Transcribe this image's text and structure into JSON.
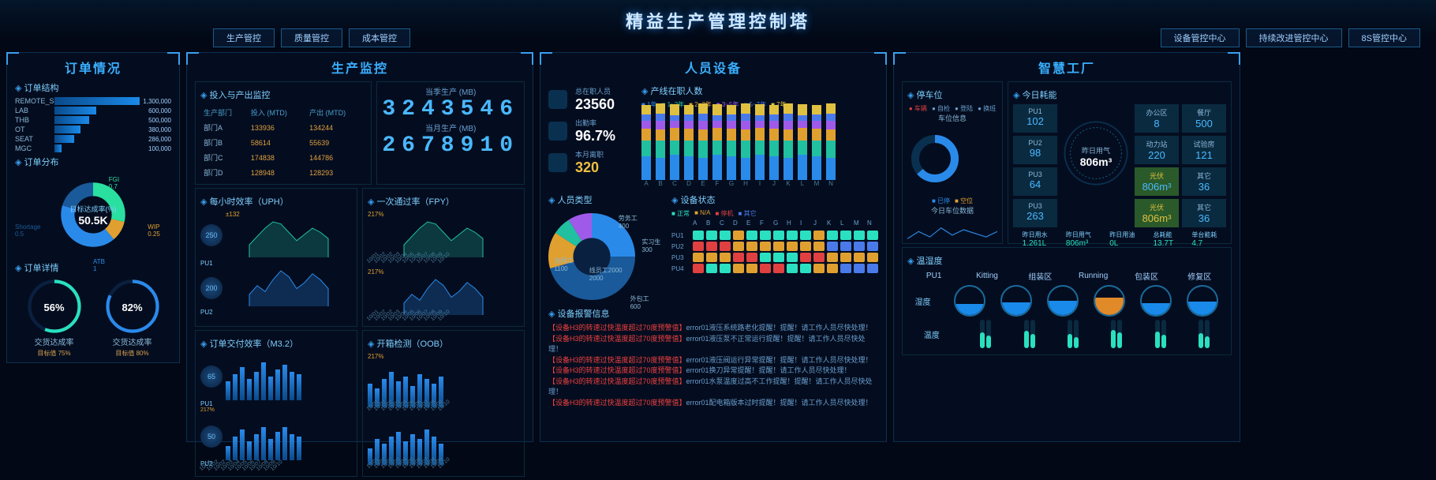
{
  "title": "精益生产管理控制塔",
  "nav_left": [
    "生产管控",
    "质量管控",
    "成本管控"
  ],
  "nav_right": [
    "设备管控中心",
    "持续改进管控中心",
    "8S管控中心"
  ],
  "orders": {
    "title": "订单情况",
    "sec1": "订单结构",
    "bars": [
      {
        "l": "REMOTE_SITE",
        "v": 1300000,
        "pct": 100
      },
      {
        "l": "LAB",
        "v": 600000,
        "pct": 46
      },
      {
        "l": "THB",
        "v": 500000,
        "pct": 38
      },
      {
        "l": "OT",
        "v": 380000,
        "pct": 29
      },
      {
        "l": "SEAT",
        "v": 286000,
        "pct": 22
      },
      {
        "l": "MGC",
        "v": 100000,
        "pct": 8
      }
    ],
    "sec2": "订单分布",
    "donut": {
      "center_l": "目标达成率(%)",
      "center_v": "50.5K",
      "slices": [
        {
          "l": "FGI",
          "v": 0.7,
          "c": "#2ae0a0"
        },
        {
          "l": "WIP",
          "v": 0.25,
          "c": "#e0a030"
        },
        {
          "l": "ATB",
          "v": 1,
          "c": "#2a8aea"
        },
        {
          "l": "Shortage",
          "v": 0.5,
          "c": "#1a5a9a"
        }
      ]
    },
    "sec3": "订单详情",
    "gauges": [
      {
        "l": "交货达成率",
        "v": "56%",
        "pct": 56,
        "tgt": "目标值 75%",
        "c": "#2ae0c0"
      },
      {
        "l": "交货达成率",
        "v": "82%",
        "pct": 82,
        "tgt": "目标值 80%",
        "c": "#2a8aea"
      }
    ]
  },
  "prod": {
    "title": "生产监控",
    "sec1": "投入与产出监控",
    "tbl_head": [
      "生产部门",
      "投入 (MTD)",
      "产出 (MTD)"
    ],
    "tbl_rows": [
      [
        "部门A",
        "133936",
        "134244"
      ],
      [
        "部门B",
        "58614",
        "55639"
      ],
      [
        "部门C",
        "174838",
        "144786"
      ],
      [
        "部门D",
        "128948",
        "128293"
      ]
    ],
    "season_l": "当季生产 (MB)",
    "season_v": "3243546",
    "month_l": "当月生产 (MB)",
    "month_v": "2678910",
    "sec2": "每小时效率（UPH）",
    "sec3": "一次通过率（FPY）",
    "pu_labels": [
      "PU1",
      "PU2"
    ],
    "pu_vals": [
      "250",
      "200"
    ],
    "fpy_pcts": [
      "217%",
      "217%"
    ],
    "area1": [
      30,
      50,
      70,
      85,
      80,
      60,
      40,
      55,
      70,
      60,
      45
    ],
    "area2": [
      20,
      35,
      25,
      45,
      60,
      50,
      30,
      40,
      55,
      45,
      30
    ],
    "sec4": "订单交付效率（M3.2）",
    "sec5": "开箱检测（OOB）",
    "bars1": [
      40,
      55,
      70,
      45,
      60,
      80,
      50,
      65,
      75,
      60,
      55
    ],
    "bars2": [
      30,
      50,
      65,
      40,
      55,
      70,
      45,
      60,
      70,
      55,
      50
    ],
    "bars3": [
      50,
      40,
      60,
      75,
      55,
      65,
      45,
      70,
      60,
      50,
      65
    ],
    "bars4": [
      35,
      55,
      45,
      60,
      70,
      50,
      65,
      55,
      75,
      60,
      45
    ],
    "dates": [
      "10/01",
      "10/02",
      "10/02",
      "10/03",
      "10/04",
      "10/05",
      "10/06",
      "10/07",
      "10/08",
      "10/09",
      "10/10"
    ]
  },
  "people": {
    "title": "人员设备",
    "stats": [
      {
        "l": "总在职人员",
        "v": "23560",
        "c": "#ffffff"
      },
      {
        "l": "出勤率",
        "v": "96.7%",
        "c": "#ffffff"
      },
      {
        "l": "本月离职",
        "v": "320",
        "c": "#f0c040"
      }
    ],
    "sec_staff": "产线在职人数",
    "staff_legend": [
      "1年",
      "1~2年",
      "2~3年",
      "3~5年",
      "5~7年",
      "7年"
    ],
    "staff_colors": [
      "#2a8aea",
      "#20c0a0",
      "#e0a030",
      "#a05aea",
      "#4a7aea",
      "#e0c040"
    ],
    "staff_cats": [
      "A",
      "B",
      "C",
      "D",
      "E",
      "F",
      "G",
      "H",
      "I",
      "J",
      "K",
      "L",
      "M",
      "N"
    ],
    "staff_data": [
      [
        30,
        20,
        15,
        10,
        8,
        12
      ],
      [
        28,
        22,
        14,
        11,
        9,
        13
      ],
      [
        32,
        18,
        16,
        9,
        7,
        14
      ],
      [
        30,
        20,
        15,
        10,
        8,
        12
      ],
      [
        28,
        22,
        14,
        11,
        9,
        13
      ],
      [
        32,
        18,
        16,
        9,
        7,
        14
      ],
      [
        30,
        20,
        15,
        10,
        8,
        12
      ],
      [
        28,
        22,
        14,
        11,
        9,
        13
      ],
      [
        32,
        18,
        16,
        9,
        7,
        14
      ],
      [
        30,
        20,
        15,
        10,
        8,
        12
      ],
      [
        28,
        22,
        14,
        11,
        9,
        13
      ],
      [
        32,
        18,
        16,
        9,
        7,
        14
      ],
      [
        30,
        20,
        15,
        10,
        8,
        12
      ],
      [
        28,
        22,
        14,
        11,
        9,
        13
      ]
    ],
    "sec_type": "人员类型",
    "pie": [
      {
        "l": "合同工",
        "v": 1100,
        "c": "#2a8aea"
      },
      {
        "l": "线员工2000",
        "v": 2000,
        "c": "#1a5a9a"
      },
      {
        "l": "外包工",
        "v": 600,
        "c": "#e0a030"
      },
      {
        "l": "实习生",
        "v": 300,
        "c": "#20c0a0"
      },
      {
        "l": "劳务工",
        "v": 400,
        "c": "#a05aea"
      }
    ],
    "sec_eq": "设备状态",
    "eq_legend": [
      "正常",
      "N/A",
      "停机",
      "其它"
    ],
    "eq_colors": [
      "#2ae0c0",
      "#e0a030",
      "#e04040",
      "#4a7aea"
    ],
    "eq_cols": [
      "A",
      "B",
      "C",
      "D",
      "E",
      "F",
      "G",
      "H",
      "I",
      "J",
      "K",
      "L",
      "M",
      "N"
    ],
    "eq_rows": [
      "PU1",
      "PU2",
      "PU3",
      "PU4"
    ],
    "eq_matrix": [
      [
        0,
        0,
        0,
        1,
        0,
        0,
        0,
        0,
        0,
        1,
        0,
        0,
        0,
        0
      ],
      [
        2,
        2,
        2,
        1,
        1,
        1,
        1,
        1,
        1,
        1,
        3,
        3,
        3,
        3
      ],
      [
        1,
        1,
        1,
        2,
        2,
        0,
        0,
        0,
        2,
        2,
        1,
        1,
        1,
        1
      ],
      [
        2,
        0,
        0,
        1,
        1,
        2,
        2,
        0,
        0,
        1,
        1,
        3,
        3,
        3
      ]
    ],
    "sec_alert": "设备报警信息",
    "alerts": [
      "【设备H3的转速过快温度超过70度预警值】error01液压系统路老化提醒！提醒！请工作人员尽快处理！",
      "【设备H3的转速过快温度超过70度预警值】error01液压泵不正常运行提醒！提醒！请工作人员尽快处理！",
      "【设备H3的转速过快温度超过70度预警值】error01液压阀运行异常提醒！提醒！请工作人员尽快处理！",
      "【设备H3的转速过快温度超过70度预警值】error01换刀异常提醒！提醒！请工作人员尽快处理！",
      "【设备H3的转速过快温度超过70度预警值】error01水泵温度过高不工作提醒！提醒！请工作人员尽快处理！",
      "【设备H3的转速过快温度超过70度预警值】error01配电箱版本过时提醒！提醒！请工作人员尽快处理！"
    ]
  },
  "factory": {
    "title": "智慧工厂",
    "sec_park": "停车位",
    "park_tabs": [
      "车辆",
      "自检",
      "登陆",
      "换班"
    ],
    "park_l": "车位信息",
    "park_legend": [
      "已停",
      "空位"
    ],
    "park_note": "今日车位数据",
    "line": [
      30,
      50,
      35,
      60,
      40,
      55,
      45,
      35,
      50
    ],
    "sec_energy": "今日耗能",
    "pu": [
      {
        "l": "PU1",
        "v": "102"
      },
      {
        "l": "PU2",
        "v": "98"
      },
      {
        "l": "PU3",
        "v": "64"
      },
      {
        "l": "PU3",
        "v": "263"
      }
    ],
    "energy_center_l": "昨日用气",
    "energy_center_v": "806m³",
    "right_stats": [
      {
        "l": "办公区",
        "v": "8"
      },
      {
        "l": "餐厅",
        "v": "500"
      },
      {
        "l": "动力站",
        "v": "220"
      },
      {
        "l": "试验房",
        "v": "121"
      },
      {
        "l": "光伏",
        "v": "806m³",
        "a": 1
      },
      {
        "l": "其它",
        "v": "36"
      }
    ],
    "usage": [
      {
        "l": "昨日用水",
        "v": "1.261L"
      },
      {
        "l": "昨日用气",
        "v": "806m³"
      },
      {
        "l": "昨日用油",
        "v": "0L"
      },
      {
        "l": "总耗能",
        "v": "13.7T"
      },
      {
        "l": "单台能耗",
        "v": "4.7"
      }
    ],
    "sec_hum": "温湿度",
    "hum_head": [
      "PU1",
      "Kitting",
      "组装区",
      "Running",
      "包装区",
      "修复区"
    ],
    "hum_l": "湿度",
    "hum_vals": [
      40,
      45,
      50,
      60,
      42,
      48
    ],
    "temp_l": "温度",
    "temp_vals": [
      55,
      60,
      50,
      65,
      58,
      52
    ]
  }
}
